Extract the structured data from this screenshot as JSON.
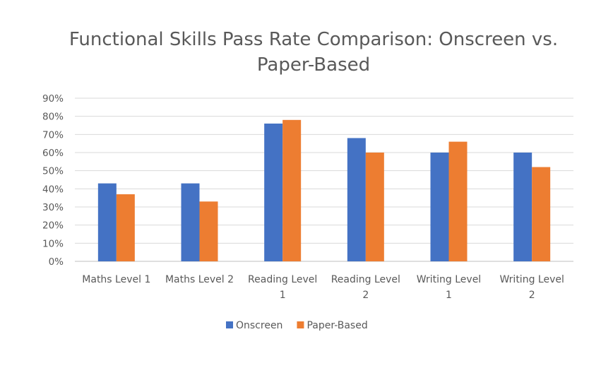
{
  "chart_data": {
    "type": "bar",
    "title": "Functional Skills Pass Rate Comparison: Onscreen vs. Paper-Based",
    "categories": [
      [
        "Maths Level 1"
      ],
      [
        "Maths Level 2"
      ],
      [
        "Reading Level",
        "1"
      ],
      [
        "Reading Level",
        "2"
      ],
      [
        "Writing Level",
        "1"
      ],
      [
        "Writing Level",
        "2"
      ]
    ],
    "series": [
      {
        "name": "Onscreen",
        "color": "#4472C4",
        "values": [
          43,
          43,
          76,
          68,
          60,
          60
        ]
      },
      {
        "name": "Paper-Based",
        "color": "#ED7D31",
        "values": [
          37,
          33,
          78,
          60,
          66,
          52
        ]
      }
    ],
    "xlabel": "",
    "ylabel": "",
    "ylim": [
      0,
      90
    ],
    "yticks": [
      "0%",
      "10%",
      "20%",
      "30%",
      "40%",
      "50%",
      "60%",
      "70%",
      "80%",
      "90%"
    ],
    "grid": true,
    "legend": "bottom"
  }
}
